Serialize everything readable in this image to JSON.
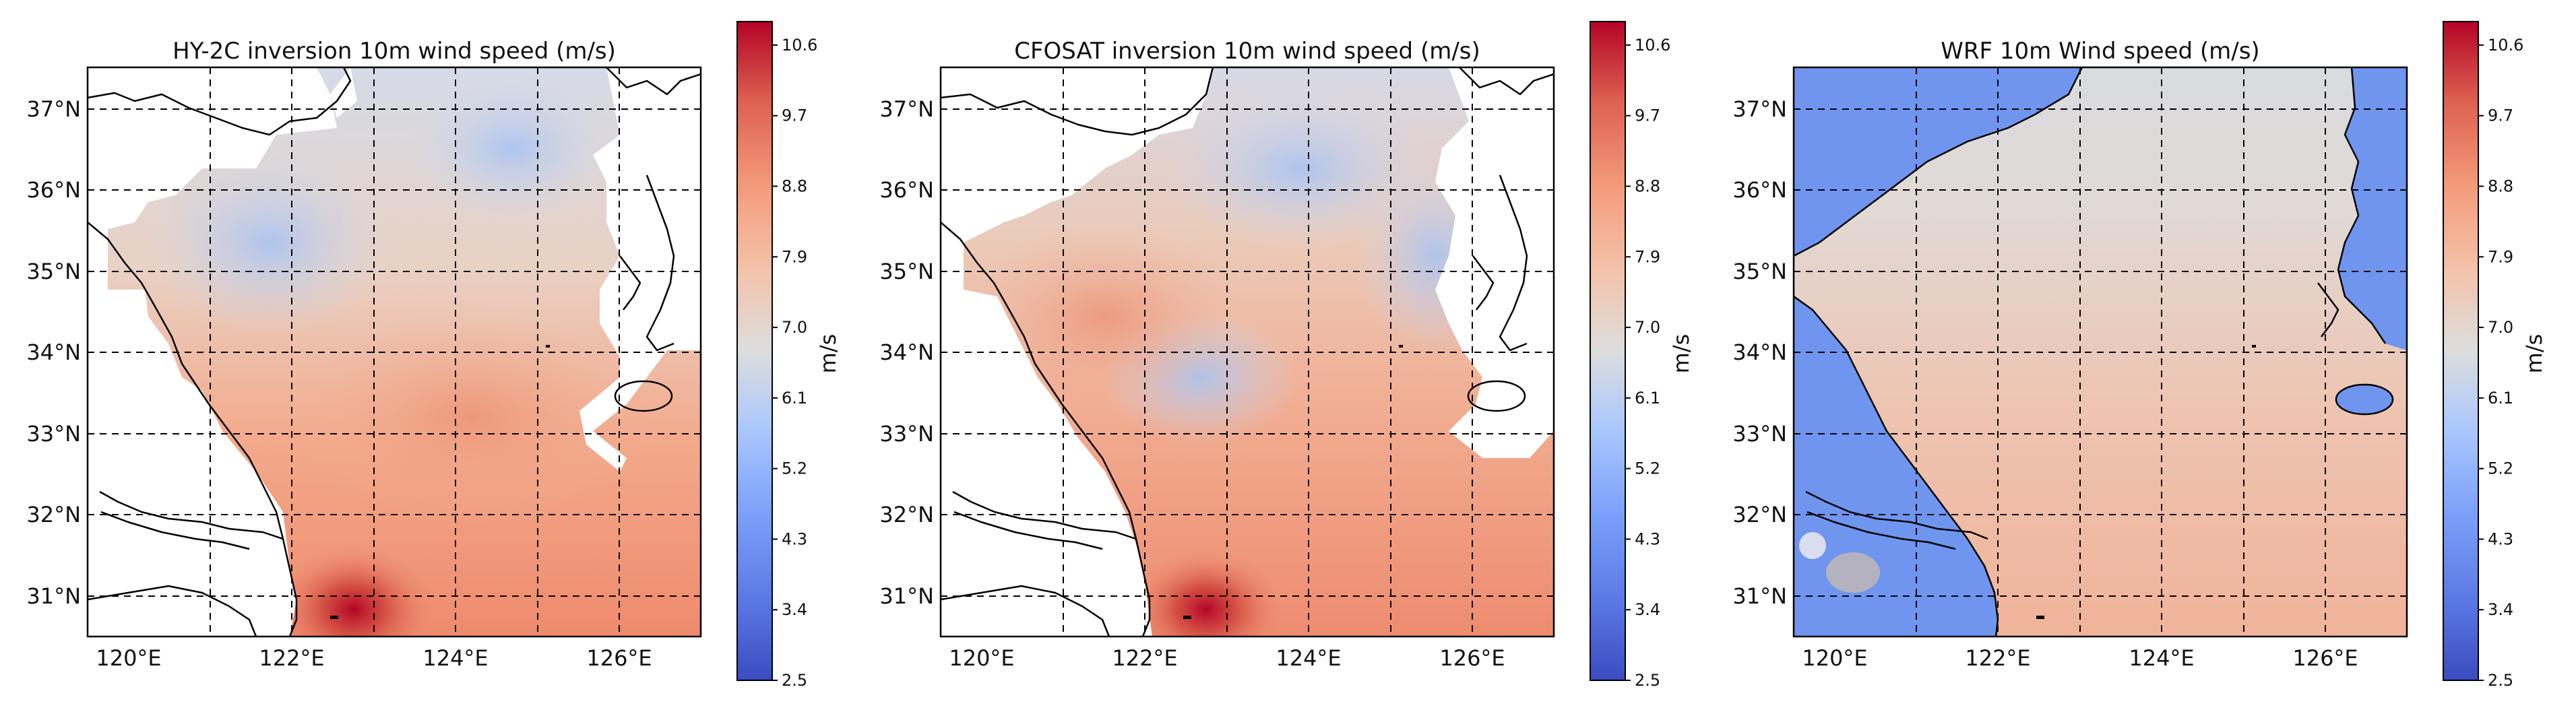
{
  "colors": {
    "low": "#3b4cc0",
    "mid": "#dcdddd",
    "high": "#b40426",
    "land": "#ffffff",
    "wrf_land": "#6f95ef"
  },
  "chart_data": [
    {
      "type": "heatmap",
      "title": "HY-2C inversion 10m wind speed (m/s)",
      "xlabel": "",
      "ylabel": "",
      "x_ticks": [
        "120°E",
        "122°E",
        "124°E",
        "126°E"
      ],
      "y_ticks": [
        "31°N",
        "32°N",
        "33°N",
        "34°N",
        "35°N",
        "36°N",
        "37°N"
      ],
      "xlim": [
        119.5,
        127.0
      ],
      "ylim": [
        30.5,
        37.5
      ],
      "colorbar_label": "m/s",
      "colorbar_ticks": [
        "2.5",
        "3.4",
        "4.3",
        "5.2",
        "6.1",
        "7.0",
        "7.9",
        "8.8",
        "9.7",
        "10.6"
      ],
      "colorbar_range": [
        2.5,
        10.9
      ],
      "grid": true,
      "wind_speed_summary": {
        "south_west_max": 10.5,
        "south_typical": 8.3,
        "north_typical": 6.6,
        "min": 5.8
      }
    },
    {
      "type": "heatmap",
      "title": "CFOSAT inversion 10m wind speed (m/s)",
      "xlabel": "",
      "ylabel": "",
      "x_ticks": [
        "120°E",
        "122°E",
        "124°E",
        "126°E"
      ],
      "y_ticks": [
        "31°N",
        "32°N",
        "33°N",
        "34°N",
        "35°N",
        "36°N",
        "37°N"
      ],
      "xlim": [
        119.5,
        127.0
      ],
      "ylim": [
        30.5,
        37.5
      ],
      "colorbar_label": "m/s",
      "colorbar_ticks": [
        "2.5",
        "3.4",
        "4.3",
        "5.2",
        "6.1",
        "7.0",
        "7.9",
        "8.8",
        "9.7",
        "10.6"
      ],
      "colorbar_range": [
        2.5,
        10.9
      ],
      "grid": true,
      "wind_speed_summary": {
        "south_west_max": 10.4,
        "south_typical": 8.2,
        "north_typical": 6.8,
        "min": 5.5
      }
    },
    {
      "type": "heatmap",
      "title": "WRF 10m Wind speed (m/s)",
      "xlabel": "",
      "ylabel": "",
      "x_ticks": [
        "120°E",
        "122°E",
        "124°E",
        "126°E"
      ],
      "y_ticks": [
        "31°N",
        "32°N",
        "33°N",
        "34°N",
        "35°N",
        "36°N",
        "37°N"
      ],
      "xlim": [
        119.5,
        127.0
      ],
      "ylim": [
        30.5,
        37.5
      ],
      "colorbar_label": "m/s",
      "colorbar_ticks": [
        "2.5",
        "3.4",
        "4.3",
        "5.2",
        "6.1",
        "7.0",
        "7.9",
        "8.8",
        "9.7",
        "10.6"
      ],
      "colorbar_range": [
        2.5,
        10.9
      ],
      "grid": true,
      "wind_speed_summary": {
        "sea_south": 7.6,
        "sea_north": 6.7,
        "land": 4.0
      }
    }
  ]
}
